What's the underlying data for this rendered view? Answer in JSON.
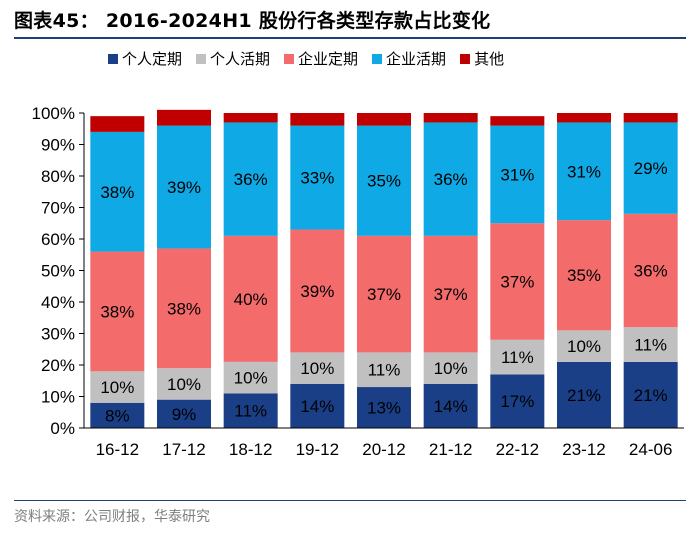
{
  "title": "图表45： 2016-2024H1 股份行各类型存款占比变化",
  "source": "资料来源：公司财报，华泰研究",
  "chart_data": {
    "type": "bar",
    "stacked": true,
    "categories": [
      "16-12",
      "17-12",
      "18-12",
      "19-12",
      "20-12",
      "21-12",
      "22-12",
      "23-12",
      "24-06"
    ],
    "ylim": [
      0,
      100
    ],
    "yticks": [
      "0%",
      "10%",
      "20%",
      "30%",
      "40%",
      "50%",
      "60%",
      "70%",
      "80%",
      "90%",
      "100%"
    ],
    "legend_position": "top",
    "series": [
      {
        "name": "个人定期",
        "color": "#1a3f87",
        "values": [
          8,
          9,
          11,
          14,
          13,
          14,
          17,
          21,
          21
        ],
        "labels": [
          "8%",
          "9%",
          "11%",
          "14%",
          "13%",
          "14%",
          "17%",
          "21%",
          "21%"
        ],
        "label_color": "#000000"
      },
      {
        "name": "个人活期",
        "color": "#c0c0c0",
        "values": [
          10,
          10,
          10,
          10,
          11,
          10,
          11,
          10,
          11
        ],
        "labels": [
          "10%",
          "10%",
          "10%",
          "10%",
          "11%",
          "10%",
          "11%",
          "10%",
          "11%"
        ],
        "label_color": "#000000"
      },
      {
        "name": "企业定期",
        "color": "#f36b6b",
        "values": [
          38,
          38,
          40,
          39,
          37,
          37,
          37,
          35,
          36
        ],
        "labels": [
          "38%",
          "38%",
          "40%",
          "39%",
          "37%",
          "37%",
          "37%",
          "35%",
          "36%"
        ],
        "label_color": "#000000"
      },
      {
        "name": "企业活期",
        "color": "#0fa9e6",
        "values": [
          38,
          39,
          36,
          33,
          35,
          36,
          31,
          31,
          29
        ],
        "labels": [
          "38%",
          "39%",
          "36%",
          "33%",
          "35%",
          "36%",
          "31%",
          "31%",
          "29%"
        ],
        "label_color": "#000000"
      },
      {
        "name": "其他",
        "color": "#c00000",
        "values": [
          5,
          5,
          3,
          4,
          4,
          3,
          3,
          3,
          3
        ],
        "labels": [
          "",
          "",
          "",
          "",
          "",
          "",
          "",
          "",
          ""
        ],
        "label_color": "#000000"
      }
    ]
  }
}
